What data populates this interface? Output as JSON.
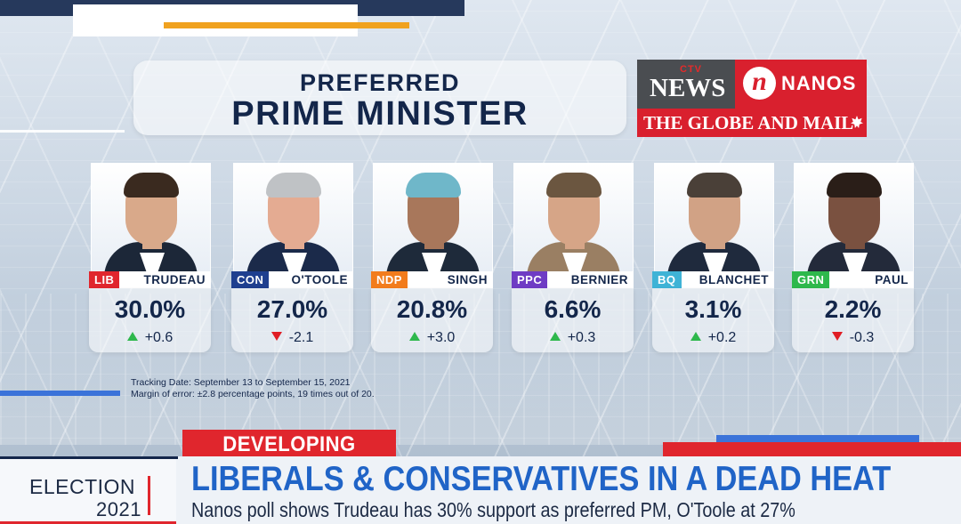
{
  "title": {
    "line1": "PREFERRED",
    "line2": "PRIME MINISTER"
  },
  "logos": {
    "ctv": "CTV",
    "news": "NEWS",
    "nanos": "NANOS",
    "nanos_mark": "n",
    "globe": "THE GLOBE AND MAIL"
  },
  "candidates": [
    {
      "party": "LIB",
      "name": "TRUDEAU",
      "pct": "30.0%",
      "change": "+0.6",
      "direction": "up",
      "party_color": "#e0262d",
      "hair": "#3a2a1f",
      "skin": "#d9a98a",
      "suit": "#1c2738"
    },
    {
      "party": "CON",
      "name": "O'TOOLE",
      "pct": "27.0%",
      "change": "-2.1",
      "direction": "down",
      "party_color": "#1f3f8f",
      "hair": "#bfc2c5",
      "skin": "#e4ab92",
      "suit": "#1b2a4a"
    },
    {
      "party": "NDP",
      "name": "SINGH",
      "pct": "20.8%",
      "change": "+3.0",
      "direction": "up",
      "party_color": "#f27c1c",
      "hair": "#6fb7c9",
      "skin": "#a8775b",
      "suit": "#1e2a3a"
    },
    {
      "party": "PPC",
      "name": "BERNIER",
      "pct": "6.6%",
      "change": "+0.3",
      "direction": "up",
      "party_color": "#6f3cc4",
      "hair": "#6b5640",
      "skin": "#d6a587",
      "suit": "#9a7f63"
    },
    {
      "party": "BQ",
      "name": "BLANCHET",
      "pct": "3.1%",
      "change": "+0.2",
      "direction": "up",
      "party_color": "#3fb3d6",
      "hair": "#4a4038",
      "skin": "#d1a285",
      "suit": "#1f2a3d"
    },
    {
      "party": "GRN",
      "name": "PAUL",
      "pct": "2.2%",
      "change": "-0.3",
      "direction": "down",
      "party_color": "#2eb84c",
      "hair": "#2a1e18",
      "skin": "#7a5140",
      "suit": "#232a3a"
    }
  ],
  "footnote": {
    "line1": "Tracking Date: September 13 to September 15, 2021",
    "line2": "Margin of error: ±2.8 percentage points, 19 times out of 20."
  },
  "lower_third": {
    "developing": "DEVELOPING NEWS",
    "election_word": "ELECTION",
    "election_year": "2021",
    "headline": "LIBERALS & CONSERVATIVES IN A DEAD HEAT",
    "subline": "Nanos poll shows Trudeau has 30% support as preferred PM, O'Toole at 27%"
  }
}
